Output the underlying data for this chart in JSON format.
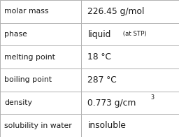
{
  "rows": [
    {
      "label": "molar mass",
      "value": "226.45 g/mol",
      "value_extra": null,
      "superscript": false
    },
    {
      "label": "phase",
      "value": "liquid",
      "value_extra": " (at STP)",
      "superscript": false
    },
    {
      "label": "melting point",
      "value": "18 °C",
      "value_extra": null,
      "superscript": false
    },
    {
      "label": "boiling point",
      "value": "287 °C",
      "value_extra": null,
      "superscript": false
    },
    {
      "label": "density",
      "value": "0.773 g/cm",
      "value_extra": "3",
      "superscript": true
    },
    {
      "label": "solubility in water",
      "value": "insoluble",
      "value_extra": null,
      "superscript": false
    }
  ],
  "bg_color": "#ffffff",
  "border_color": "#b0b0b0",
  "text_color": "#1a1a1a",
  "label_font_size": 7.8,
  "value_font_size": 8.8,
  "extra_font_size": 6.2,
  "super_font_size": 5.8,
  "col_split": 0.455,
  "figsize": [
    2.56,
    1.96
  ],
  "dpi": 100
}
